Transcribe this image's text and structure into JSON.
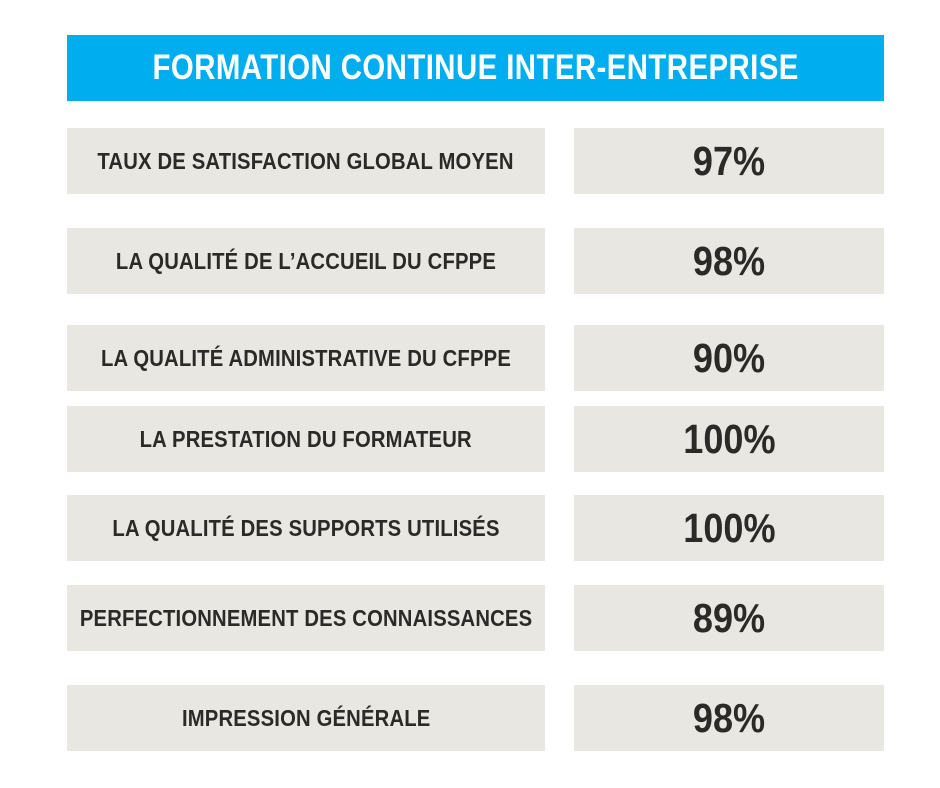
{
  "header": {
    "title": "FORMATION CONTINUE INTER-ENTREPRISE"
  },
  "rows": [
    {
      "label": "TAUX DE SATISFACTION GLOBAL MOYEN",
      "value": "97%"
    },
    {
      "label": "LA QUALITÉ DE L’ACCUEIL DU CFPPE",
      "value": "98%"
    },
    {
      "label": "LA QUALITÉ ADMINISTRATIVE DU CFPPE",
      "value": "90%"
    },
    {
      "label": "LA PRESTATION DU FORMATEUR",
      "value": "100%"
    },
    {
      "label": "LA QUALITÉ DES SUPPORTS UTILISÉS",
      "value": "100%"
    },
    {
      "label": "PERFECTIONNEMENT DES CONNAISSANCES",
      "value": "89%"
    },
    {
      "label": "IMPRESSION GÉNÉRALE",
      "value": "98%"
    }
  ],
  "colors": {
    "banner_blue": "#00aeef",
    "banner_text": "#ffffff",
    "box_gray": "#e8e7e2",
    "text_dark": "#2b2a27",
    "background": "#ffffff"
  },
  "chart_data": {
    "type": "table",
    "title": "FORMATION CONTINUE INTER-ENTREPRISE",
    "categories": [
      "TAUX DE SATISFACTION GLOBAL MOYEN",
      "LA QUALITÉ DE L’ACCUEIL DU CFPPE",
      "LA QUALITÉ ADMINISTRATIVE DU CFPPE",
      "LA PRESTATION DU FORMATEUR",
      "LA QUALITÉ DES SUPPORTS UTILISÉS",
      "PERFECTIONNEMENT DES CONNAISSANCES",
      "IMPRESSION GÉNÉRALE"
    ],
    "values": [
      97,
      98,
      90,
      100,
      100,
      89,
      98
    ],
    "unit": "%",
    "value_range": [
      0,
      100
    ]
  }
}
